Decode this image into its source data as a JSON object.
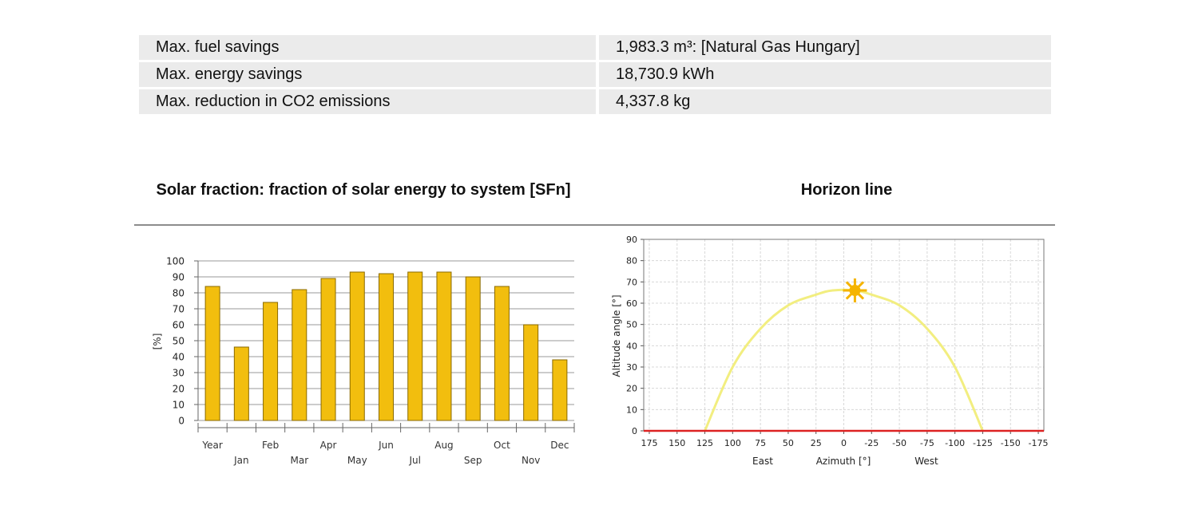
{
  "stats": [
    {
      "label": "Max. fuel savings",
      "value": "1,983.3 m³: [Natural Gas Hungary]"
    },
    {
      "label": "Max. energy savings",
      "value": "18,730.9 kWh"
    },
    {
      "label": "Max. reduction in CO2 emissions",
      "value": "4,337.8 kg"
    }
  ],
  "chart_data": [
    {
      "type": "bar",
      "title": "Solar fraction: fraction of solar energy to system [SFn]",
      "ylabel": "[%]",
      "xlabel": "",
      "categories": [
        "Year",
        "Jan",
        "Feb",
        "Mar",
        "Apr",
        "May",
        "Jun",
        "Jul",
        "Aug",
        "Sep",
        "Oct",
        "Nov",
        "Dec"
      ],
      "values": [
        84,
        46,
        74,
        82,
        89,
        93,
        92,
        93,
        93,
        90,
        84,
        60,
        38
      ],
      "ylim": [
        0,
        100
      ],
      "yticks": [
        "0",
        "10",
        "20",
        "30",
        "40",
        "50",
        "60",
        "70",
        "80",
        "90",
        "100"
      ],
      "grid": true,
      "legend": "none",
      "bar_color": "#f2be0e"
    },
    {
      "type": "line",
      "title": "Horizon line",
      "xlabel": "Azimuth [°]",
      "ylabel": "Altitude angle [°]",
      "xlim": [
        180,
        -180
      ],
      "ylim": [
        0,
        90
      ],
      "xticks": [
        "175",
        "150",
        "125",
        "100",
        "75",
        "50",
        "25",
        "0",
        "-25",
        "-50",
        "-75",
        "-100",
        "-125",
        "-150",
        "-175"
      ],
      "yticks": [
        "0",
        "10",
        "20",
        "30",
        "40",
        "50",
        "60",
        "70",
        "80",
        "90"
      ],
      "annotations": {
        "east": "East",
        "west": "West"
      },
      "grid": true,
      "series": [
        {
          "x": [
            125,
            100,
            75,
            50,
            25,
            10,
            -10,
            -25,
            -50,
            -75,
            -100,
            -125
          ],
          "y": [
            0,
            30,
            48,
            59,
            64,
            66,
            66,
            64,
            59,
            48,
            30,
            0
          ],
          "color": "#f2ee80"
        },
        {
          "x": [
            180,
            -180
          ],
          "y": [
            0,
            0
          ],
          "color": "#dd2222"
        }
      ],
      "sun": {
        "x": -10,
        "y": 66,
        "color": "#f5b400"
      }
    }
  ]
}
